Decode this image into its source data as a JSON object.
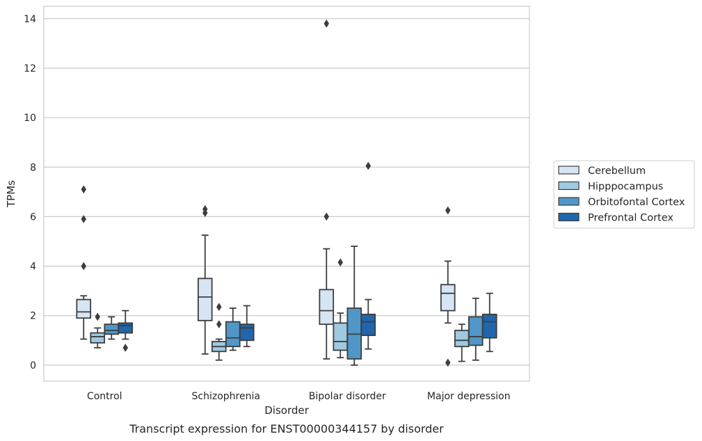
{
  "chart_data": {
    "type": "boxplot",
    "caption": "Transcript expression for ENST00000344157 by disorder",
    "xlabel": "Disorder",
    "ylabel": "TPMs",
    "ylim": [
      -0.65,
      14.5
    ],
    "yticks": [
      0,
      2,
      4,
      6,
      8,
      10,
      12,
      14
    ],
    "grid": "horizontal",
    "legend_position": "right",
    "categories": [
      "Control",
      "Schizophrenia",
      "Bipolar disorder",
      "Major depression"
    ],
    "series": [
      {
        "name": "Cerebellum",
        "color": "#d6e5f4",
        "boxes": [
          {
            "whisker_low": 1.05,
            "q1": 1.9,
            "median": 2.15,
            "q3": 2.65,
            "whisker_high": 2.8,
            "outliers": [
              7.1,
              5.9,
              4.0
            ]
          },
          {
            "whisker_low": 0.45,
            "q1": 1.8,
            "median": 2.75,
            "q3": 3.5,
            "whisker_high": 5.25,
            "outliers": [
              6.3,
              6.15
            ]
          },
          {
            "whisker_low": 0.25,
            "q1": 1.65,
            "median": 2.2,
            "q3": 3.05,
            "whisker_high": 4.7,
            "outliers": [
              13.8,
              6.0
            ]
          },
          {
            "whisker_low": 1.7,
            "q1": 2.2,
            "median": 2.9,
            "q3": 3.25,
            "whisker_high": 4.2,
            "outliers": [
              6.25,
              0.1
            ]
          }
        ]
      },
      {
        "name": "Hipppocampus",
        "color": "#9ec9e1",
        "boxes": [
          {
            "whisker_low": 0.7,
            "q1": 0.9,
            "median": 1.15,
            "q3": 1.3,
            "whisker_high": 1.5,
            "outliers": [
              1.95
            ]
          },
          {
            "whisker_low": 0.2,
            "q1": 0.55,
            "median": 0.75,
            "q3": 0.95,
            "whisker_high": 1.05,
            "outliers": [
              2.35,
              1.65
            ]
          },
          {
            "whisker_low": 0.3,
            "q1": 0.6,
            "median": 0.95,
            "q3": 1.7,
            "whisker_high": 2.1,
            "outliers": [
              4.15
            ]
          },
          {
            "whisker_low": 0.15,
            "q1": 0.75,
            "median": 1.0,
            "q3": 1.4,
            "whisker_high": 1.65,
            "outliers": []
          }
        ]
      },
      {
        "name": "Orbitofontal Cortex",
        "color": "#5097c8",
        "boxes": [
          {
            "whisker_low": 1.05,
            "q1": 1.25,
            "median": 1.4,
            "q3": 1.65,
            "whisker_high": 1.95,
            "outliers": []
          },
          {
            "whisker_low": 0.6,
            "q1": 0.75,
            "median": 1.1,
            "q3": 1.75,
            "whisker_high": 2.3,
            "outliers": []
          },
          {
            "whisker_low": 0.0,
            "q1": 0.25,
            "median": 1.25,
            "q3": 2.3,
            "whisker_high": 4.8,
            "outliers": []
          },
          {
            "whisker_low": 0.2,
            "q1": 0.8,
            "median": 1.15,
            "q3": 1.95,
            "whisker_high": 2.7,
            "outliers": []
          }
        ]
      },
      {
        "name": "Prefrontal Cortex",
        "color": "#2066ac",
        "boxes": [
          {
            "whisker_low": 1.05,
            "q1": 1.3,
            "median": 1.6,
            "q3": 1.7,
            "whisker_high": 2.2,
            "outliers": [
              0.7
            ]
          },
          {
            "whisker_low": 0.75,
            "q1": 1.0,
            "median": 1.5,
            "q3": 1.65,
            "whisker_high": 2.4,
            "outliers": []
          },
          {
            "whisker_low": 0.65,
            "q1": 1.2,
            "median": 1.75,
            "q3": 2.05,
            "whisker_high": 2.65,
            "outliers": [
              8.05
            ]
          },
          {
            "whisker_low": 0.55,
            "q1": 1.1,
            "median": 1.75,
            "q3": 2.05,
            "whisker_high": 2.9,
            "outliers": []
          }
        ]
      }
    ]
  }
}
